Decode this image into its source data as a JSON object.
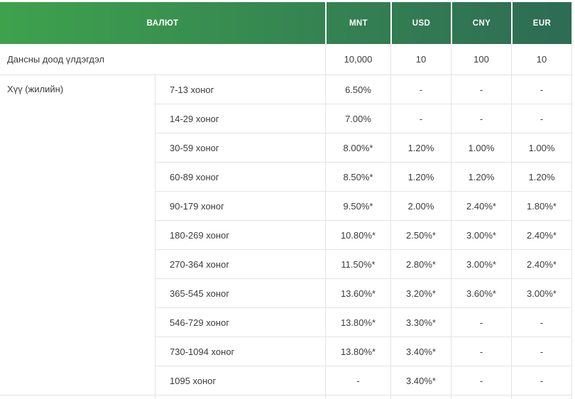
{
  "colors": {
    "header_gradient_start": "#3ea24d",
    "header_gradient_end": "#2d6b55",
    "header_text": "#ffffff",
    "header_separator": "#ffffff",
    "body_text": "#3c3c3c",
    "border": "#e3e3e3",
    "row_background": "#ffffff"
  },
  "table": {
    "header": {
      "currency_label": "ВАЛЮТ",
      "columns": [
        "MNT",
        "USD",
        "CNY",
        "EUR"
      ]
    },
    "min_balance_row": {
      "label": "Дансны доод үлдэгдэл",
      "values": [
        "10,000",
        "10",
        "100",
        "10"
      ]
    },
    "interest_section": {
      "label": "Хүү (жилийн)",
      "rows": [
        {
          "term": "7-13 хоног",
          "values": [
            "6.50%",
            "-",
            "-",
            "-"
          ]
        },
        {
          "term": "14-29 хоног",
          "values": [
            "7.00%",
            "-",
            "-",
            "-"
          ]
        },
        {
          "term": "30-59 хоног",
          "values": [
            "8.00%*",
            "1.20%",
            "1.00%",
            "1.00%"
          ]
        },
        {
          "term": "60-89 хоног",
          "values": [
            "8.50%*",
            "1.20%",
            "1.20%",
            "1.20%"
          ]
        },
        {
          "term": "90-179 хоног",
          "values": [
            "9.50%*",
            "2.00%",
            "2.40%*",
            "1.80%*"
          ]
        },
        {
          "term": "180-269 хоног",
          "values": [
            "10.80%*",
            "2.50%*",
            "3.00%*",
            "2.40%*"
          ]
        },
        {
          "term": "270-364 хоног",
          "values": [
            "11.50%*",
            "2.80%*",
            "3.00%*",
            "2.40%*"
          ]
        },
        {
          "term": "365-545 хоног",
          "values": [
            "13.60%*",
            "3.20%*",
            "3.60%*",
            "3.00%*"
          ]
        },
        {
          "term": "546-729 хоног",
          "values": [
            "13.80%*",
            "3.30%*",
            "-",
            "-"
          ]
        },
        {
          "term": "730-1094 хоног",
          "values": [
            "13.80%*",
            "3.40%*",
            "-",
            "-"
          ]
        },
        {
          "term": "1095 хоног",
          "values": [
            "-",
            "3.40%*",
            "-",
            "-"
          ]
        }
      ]
    }
  }
}
